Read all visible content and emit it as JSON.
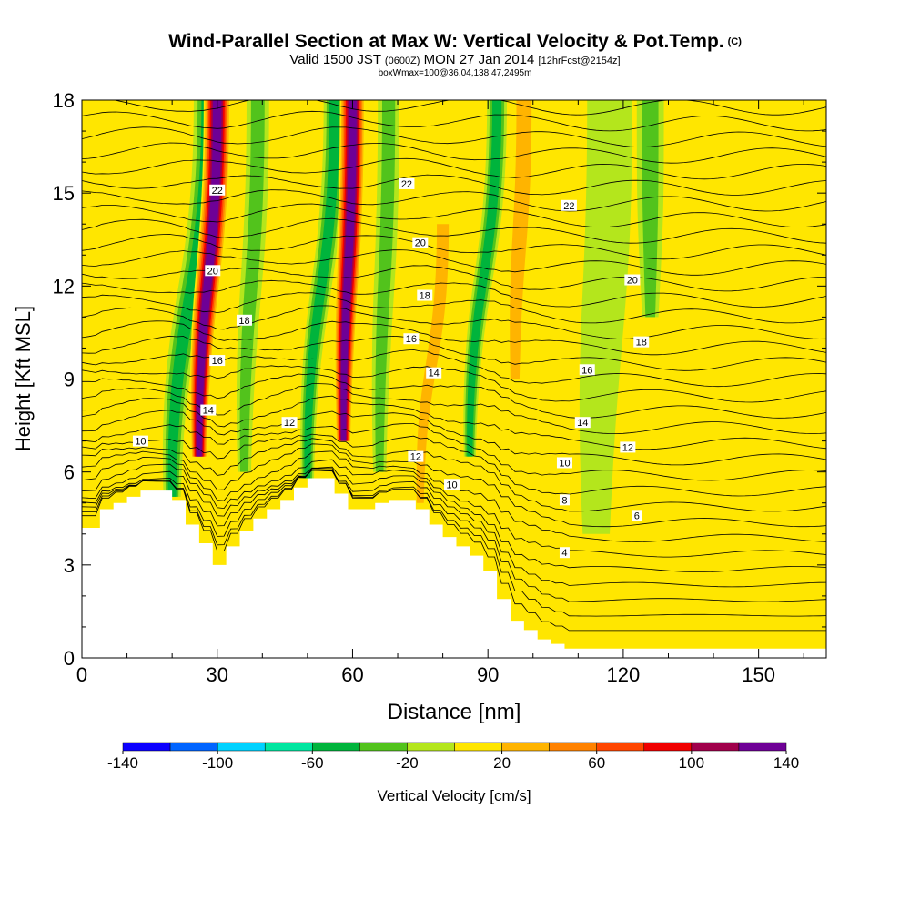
{
  "header": {
    "title": "Wind-Parallel Section at Max W: Vertical Velocity & Pot.Temp.",
    "copyright": "(C)",
    "valid_prefix": "Valid 1500 JST",
    "valid_utc": "(0600Z)",
    "valid_date": "MON 27 Jan 2014",
    "forecast_info": "[12hrFcst@2154z]",
    "box_info": "boxWmax=100@36.04,138.47,2495m"
  },
  "chart_data": {
    "type": "heatmap",
    "xlabel": "Distance [nm]",
    "ylabel": "Height [Kft MSL]",
    "xlim": [
      0,
      165
    ],
    "ylim": [
      0,
      18
    ],
    "x_ticks": [
      0,
      30,
      60,
      90,
      120,
      150
    ],
    "y_ticks": [
      0,
      3,
      6,
      9,
      12,
      15,
      18
    ],
    "colorbar": {
      "label": "Vertical Velocity [cm/s]",
      "bounds": [
        -140,
        -120,
        -100,
        -80,
        -60,
        -40,
        -20,
        0,
        20,
        40,
        60,
        80,
        100,
        120,
        140
      ],
      "tick_labels": [
        "-140",
        "-100",
        "-60",
        "-20",
        "20",
        "60",
        "100",
        "140"
      ],
      "colors": [
        "#0c00ff",
        "#0064ff",
        "#00d2ff",
        "#00e6a0",
        "#00b43c",
        "#52c31c",
        "#b4e61c",
        "#ffe600",
        "#ffb400",
        "#ff8200",
        "#ff4600",
        "#f00000",
        "#a0004b",
        "#6e0096"
      ]
    },
    "background_level": "#ffe600",
    "terrain_kft": [
      [
        0,
        4.2
      ],
      [
        4,
        4.8
      ],
      [
        7,
        5.0
      ],
      [
        10,
        5.2
      ],
      [
        13,
        5.4
      ],
      [
        17,
        5.4
      ],
      [
        20,
        5.1
      ],
      [
        23,
        4.3
      ],
      [
        26,
        3.7
      ],
      [
        29,
        3.0
      ],
      [
        32,
        3.6
      ],
      [
        35,
        4.1
      ],
      [
        38,
        4.5
      ],
      [
        41,
        4.8
      ],
      [
        44,
        5.1
      ],
      [
        47,
        5.5
      ],
      [
        50,
        5.8
      ],
      [
        53,
        5.8
      ],
      [
        56,
        5.3
      ],
      [
        59,
        4.8
      ],
      [
        62,
        4.8
      ],
      [
        65,
        5.0
      ],
      [
        68,
        5.1
      ],
      [
        71,
        5.1
      ],
      [
        74,
        4.8
      ],
      [
        77,
        4.3
      ],
      [
        80,
        3.9
      ],
      [
        83,
        3.6
      ],
      [
        86,
        3.3
      ],
      [
        89,
        2.8
      ],
      [
        92,
        1.9
      ],
      [
        95,
        1.2
      ],
      [
        98,
        0.9
      ],
      [
        101,
        0.6
      ],
      [
        104,
        0.45
      ],
      [
        107,
        0.3
      ],
      [
        110,
        0.3
      ],
      [
        165,
        0.3
      ]
    ],
    "velocity_features": [
      {
        "x": 20,
        "z_bottom": 5.2,
        "z_top": 18,
        "half_width_nm": 3.2,
        "lean_nm": 8,
        "value": -60
      },
      {
        "x": 26,
        "z_bottom": 6.5,
        "z_top": 18,
        "half_width_nm": 3.0,
        "lean_nm": 4,
        "value": 130
      },
      {
        "x": 36,
        "z_bottom": 6.0,
        "z_top": 18,
        "half_width_nm": 2.5,
        "lean_nm": 3,
        "value": -40
      },
      {
        "x": 50,
        "z_bottom": 5.8,
        "z_top": 18,
        "half_width_nm": 2.4,
        "lean_nm": 6,
        "value": -60
      },
      {
        "x": 58,
        "z_bottom": 7.0,
        "z_top": 18,
        "half_width_nm": 2.8,
        "lean_nm": 2,
        "value": 130
      },
      {
        "x": 66,
        "z_bottom": 6.0,
        "z_top": 18,
        "half_width_nm": 2.4,
        "lean_nm": 2,
        "value": -40
      },
      {
        "x": 75,
        "z_bottom": 5.0,
        "z_top": 14,
        "half_width_nm": 2.2,
        "lean_nm": 5,
        "value": 40
      },
      {
        "x": 86,
        "z_bottom": 6.5,
        "z_top": 18,
        "half_width_nm": 2.2,
        "lean_nm": 6,
        "value": -60
      },
      {
        "x": 96,
        "z_bottom": 9.0,
        "z_top": 18,
        "half_width_nm": 2.8,
        "lean_nm": 2,
        "value": 40
      },
      {
        "x": 114,
        "z_bottom": 4.0,
        "z_top": 18,
        "half_width_nm": 5.0,
        "lean_nm": 3,
        "value": -20
      },
      {
        "x": 126,
        "z_bottom": 11.0,
        "z_top": 18,
        "half_width_nm": 3.0,
        "lean_nm": 0,
        "value": -40
      },
      {
        "x": 152,
        "z_bottom": 0.3,
        "z_top": 18,
        "half_width_nm": 6.0,
        "lean_nm": 0,
        "value": 20
      }
    ],
    "theta_contour_labels": [
      {
        "text": "22",
        "x": 30,
        "z": 15.1
      },
      {
        "text": "20",
        "x": 29,
        "z": 12.5
      },
      {
        "text": "18",
        "x": 36,
        "z": 10.9
      },
      {
        "text": "16",
        "x": 30,
        "z": 9.6
      },
      {
        "text": "14",
        "x": 28,
        "z": 8.0
      },
      {
        "text": "12",
        "x": 46,
        "z": 7.6
      },
      {
        "text": "10",
        "x": 13,
        "z": 7.0
      },
      {
        "text": "22",
        "x": 72,
        "z": 15.3
      },
      {
        "text": "20",
        "x": 75,
        "z": 13.4
      },
      {
        "text": "18",
        "x": 76,
        "z": 11.7
      },
      {
        "text": "16",
        "x": 73,
        "z": 10.3
      },
      {
        "text": "14",
        "x": 78,
        "z": 9.2
      },
      {
        "text": "12",
        "x": 74,
        "z": 6.5
      },
      {
        "text": "10",
        "x": 82,
        "z": 5.6
      },
      {
        "text": "22",
        "x": 108,
        "z": 14.6
      },
      {
        "text": "20",
        "x": 122,
        "z": 12.2
      },
      {
        "text": "18",
        "x": 124,
        "z": 10.2
      },
      {
        "text": "16",
        "x": 112,
        "z": 9.3
      },
      {
        "text": "14",
        "x": 111,
        "z": 7.6
      },
      {
        "text": "12",
        "x": 121,
        "z": 6.8
      },
      {
        "text": "10",
        "x": 107,
        "z": 6.3
      },
      {
        "text": "8",
        "x": 107,
        "z": 5.1
      },
      {
        "text": "6",
        "x": 123,
        "z": 4.6
      },
      {
        "text": "4",
        "x": 107,
        "z": 3.4
      }
    ]
  }
}
